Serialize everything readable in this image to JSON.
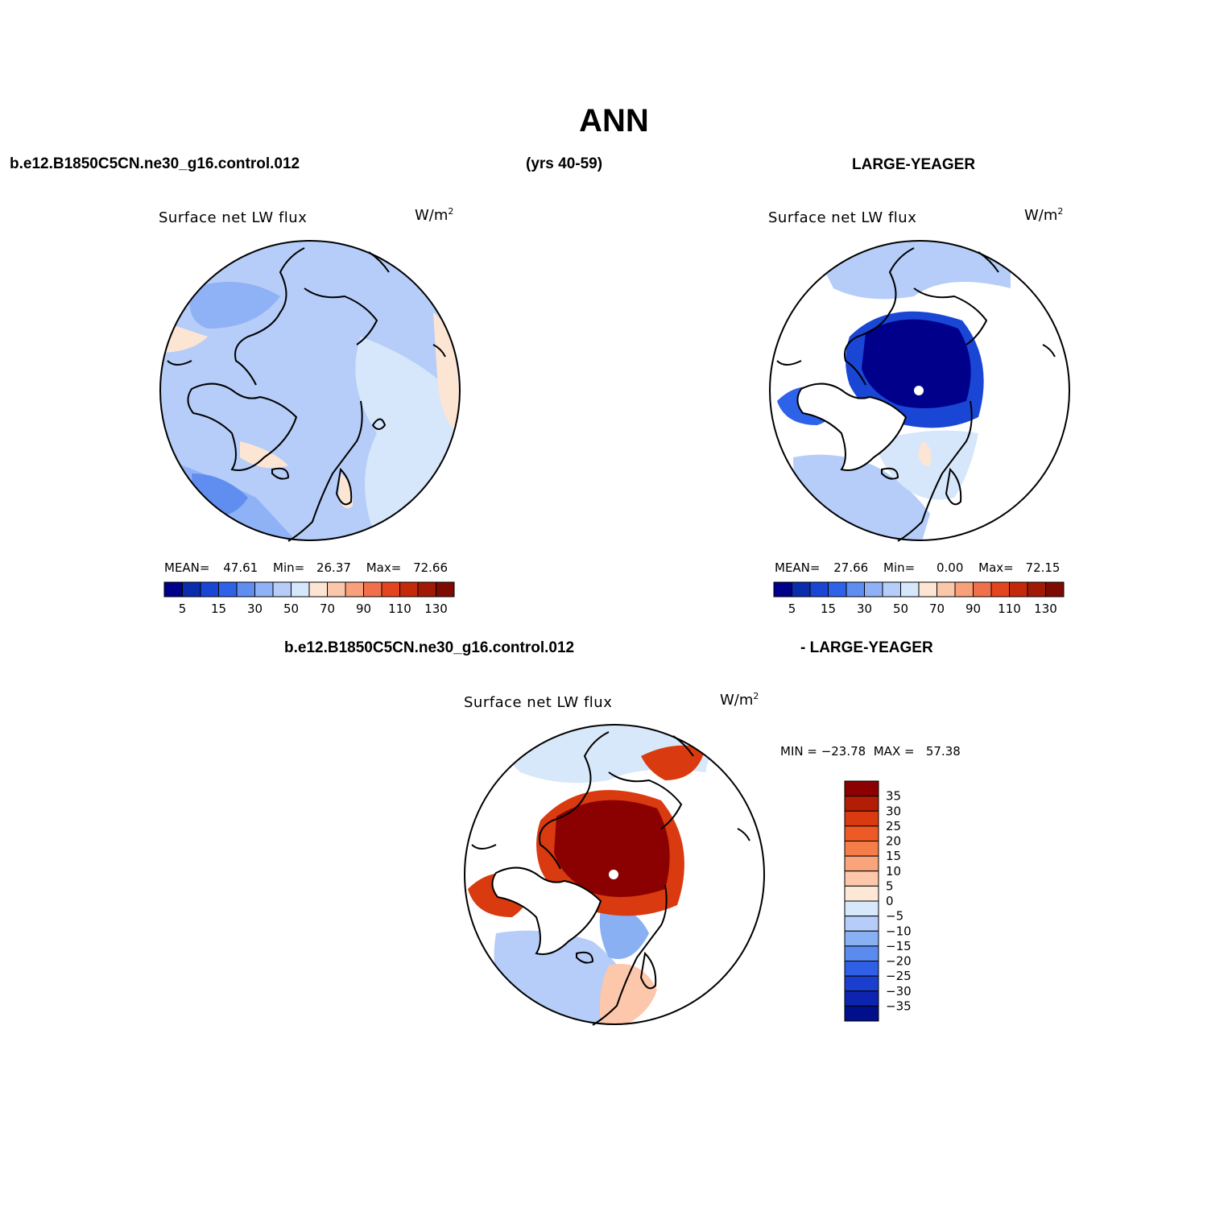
{
  "page": {
    "title": "ANN",
    "case_name": "b.e12.B1850C5CN.ne30_g16.control.012",
    "years": "(yrs 40-59)",
    "obs_name": "LARGE-YEAGER",
    "diff_case_name": "b.e12.B1850C5CN.ne30_g16.control.012",
    "diff_obs_name": "- LARGE-YEAGER"
  },
  "chart_data": [
    {
      "type": "heatmap",
      "projection": "north polar stereographic",
      "title": "Surface net LW flux",
      "units": "W/m",
      "units_sup": "2",
      "stats": {
        "mean_label": "MEAN=",
        "mean": "47.61",
        "min_label": "Min=",
        "min": "26.37",
        "max_label": "Max=",
        "max": "72.66"
      },
      "colorbar": {
        "orientation": "horizontal",
        "levels": [
          5,
          10,
          15,
          20,
          30,
          40,
          50,
          60,
          70,
          80,
          90,
          100,
          110,
          120,
          130
        ],
        "tick_labels": [
          "5",
          "15",
          "30",
          "50",
          "70",
          "90",
          "110",
          "130"
        ],
        "colors": [
          "#00008b",
          "#0a2dab",
          "#1a46d6",
          "#2e62e8",
          "#5f8ef0",
          "#8fb1f5",
          "#b5cdf8",
          "#d6e6fb",
          "#fde5d4",
          "#fbc7aa",
          "#f7a07a",
          "#f1704c",
          "#e3461f",
          "#c42a0a",
          "#a01a06",
          "#7d0b02"
        ]
      }
    },
    {
      "type": "heatmap",
      "projection": "north polar stereographic",
      "title": "Surface net LW flux",
      "units": "W/m",
      "units_sup": "2",
      "stats": {
        "mean_label": "MEAN=",
        "mean": "27.66",
        "min_label": "Min=",
        "min": "0.00",
        "max_label": "Max=",
        "max": "72.15"
      },
      "colorbar": {
        "orientation": "horizontal",
        "levels": [
          5,
          10,
          15,
          20,
          30,
          40,
          50,
          60,
          70,
          80,
          90,
          100,
          110,
          120,
          130
        ],
        "tick_labels": [
          "5",
          "15",
          "30",
          "50",
          "70",
          "90",
          "110",
          "130"
        ],
        "colors": [
          "#00008b",
          "#0a2dab",
          "#1a46d6",
          "#2e62e8",
          "#5f8ef0",
          "#8fb1f5",
          "#b5cdf8",
          "#d6e6fb",
          "#fde5d4",
          "#fbc7aa",
          "#f7a07a",
          "#f1704c",
          "#e3461f",
          "#c42a0a",
          "#a01a06",
          "#7d0b02"
        ]
      }
    },
    {
      "type": "heatmap",
      "projection": "north polar stereographic",
      "title": "Surface net LW flux",
      "units": "W/m",
      "units_sup": "2",
      "stats_text": "MIN = −23.78  MAX =   57.38",
      "colorbar": {
        "orientation": "vertical",
        "tick_labels": [
          "35",
          "30",
          "25",
          "20",
          "15",
          "10",
          "5",
          "0",
          "−5",
          "−10",
          "−15",
          "−20",
          "−25",
          "−30",
          "−35"
        ],
        "colors": [
          "#8b0000",
          "#b21e05",
          "#d93a0f",
          "#ee5a26",
          "#f57d4a",
          "#f9a47b",
          "#fcc7aa",
          "#fde8d8",
          "#d8e8fb",
          "#b5cdf8",
          "#8ab0f4",
          "#5b8bee",
          "#2f5fe4",
          "#1a3fcf",
          "#0c24b0",
          "#00108b"
        ]
      }
    }
  ]
}
